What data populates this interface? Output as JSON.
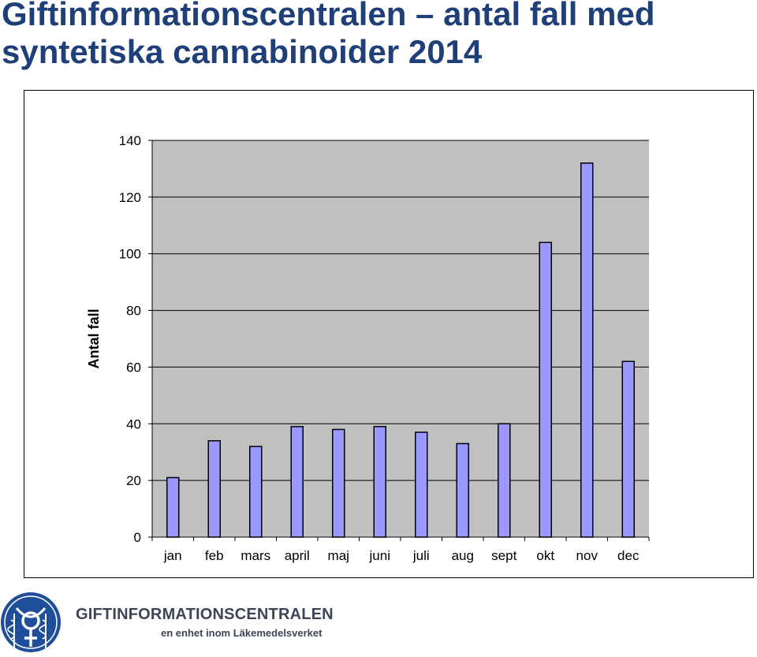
{
  "page": {
    "title_line1": "Giftinformationscentralen – antal fall med",
    "title_line2": "syntetiska cannabinoider 2014"
  },
  "footer": {
    "org_name": "GIFTINFORMATIONSCENTRALEN",
    "org_subtitle": "en enhet inom Läkemedelsverket",
    "logo_icon": "caduceus-female-symbol-seal-icon"
  },
  "colors": {
    "title": "#1f3f78",
    "bar_fill": "#9999ff",
    "plot_background": "#c0c0c0",
    "logo": "#1f4e9a",
    "footer_text": "#3c4656"
  },
  "chart_data": {
    "type": "bar",
    "title": "",
    "xlabel": "",
    "ylabel": "Antal fall",
    "categories": [
      "jan",
      "feb",
      "mars",
      "april",
      "maj",
      "juni",
      "juli",
      "aug",
      "sept",
      "okt",
      "nov",
      "dec"
    ],
    "values": [
      21,
      34,
      32,
      39,
      38,
      39,
      37,
      33,
      40,
      104,
      132,
      62
    ],
    "ylim": [
      0,
      140
    ],
    "yticks": [
      0,
      20,
      40,
      60,
      80,
      100,
      120,
      140
    ],
    "grid": true,
    "legend": "none"
  }
}
